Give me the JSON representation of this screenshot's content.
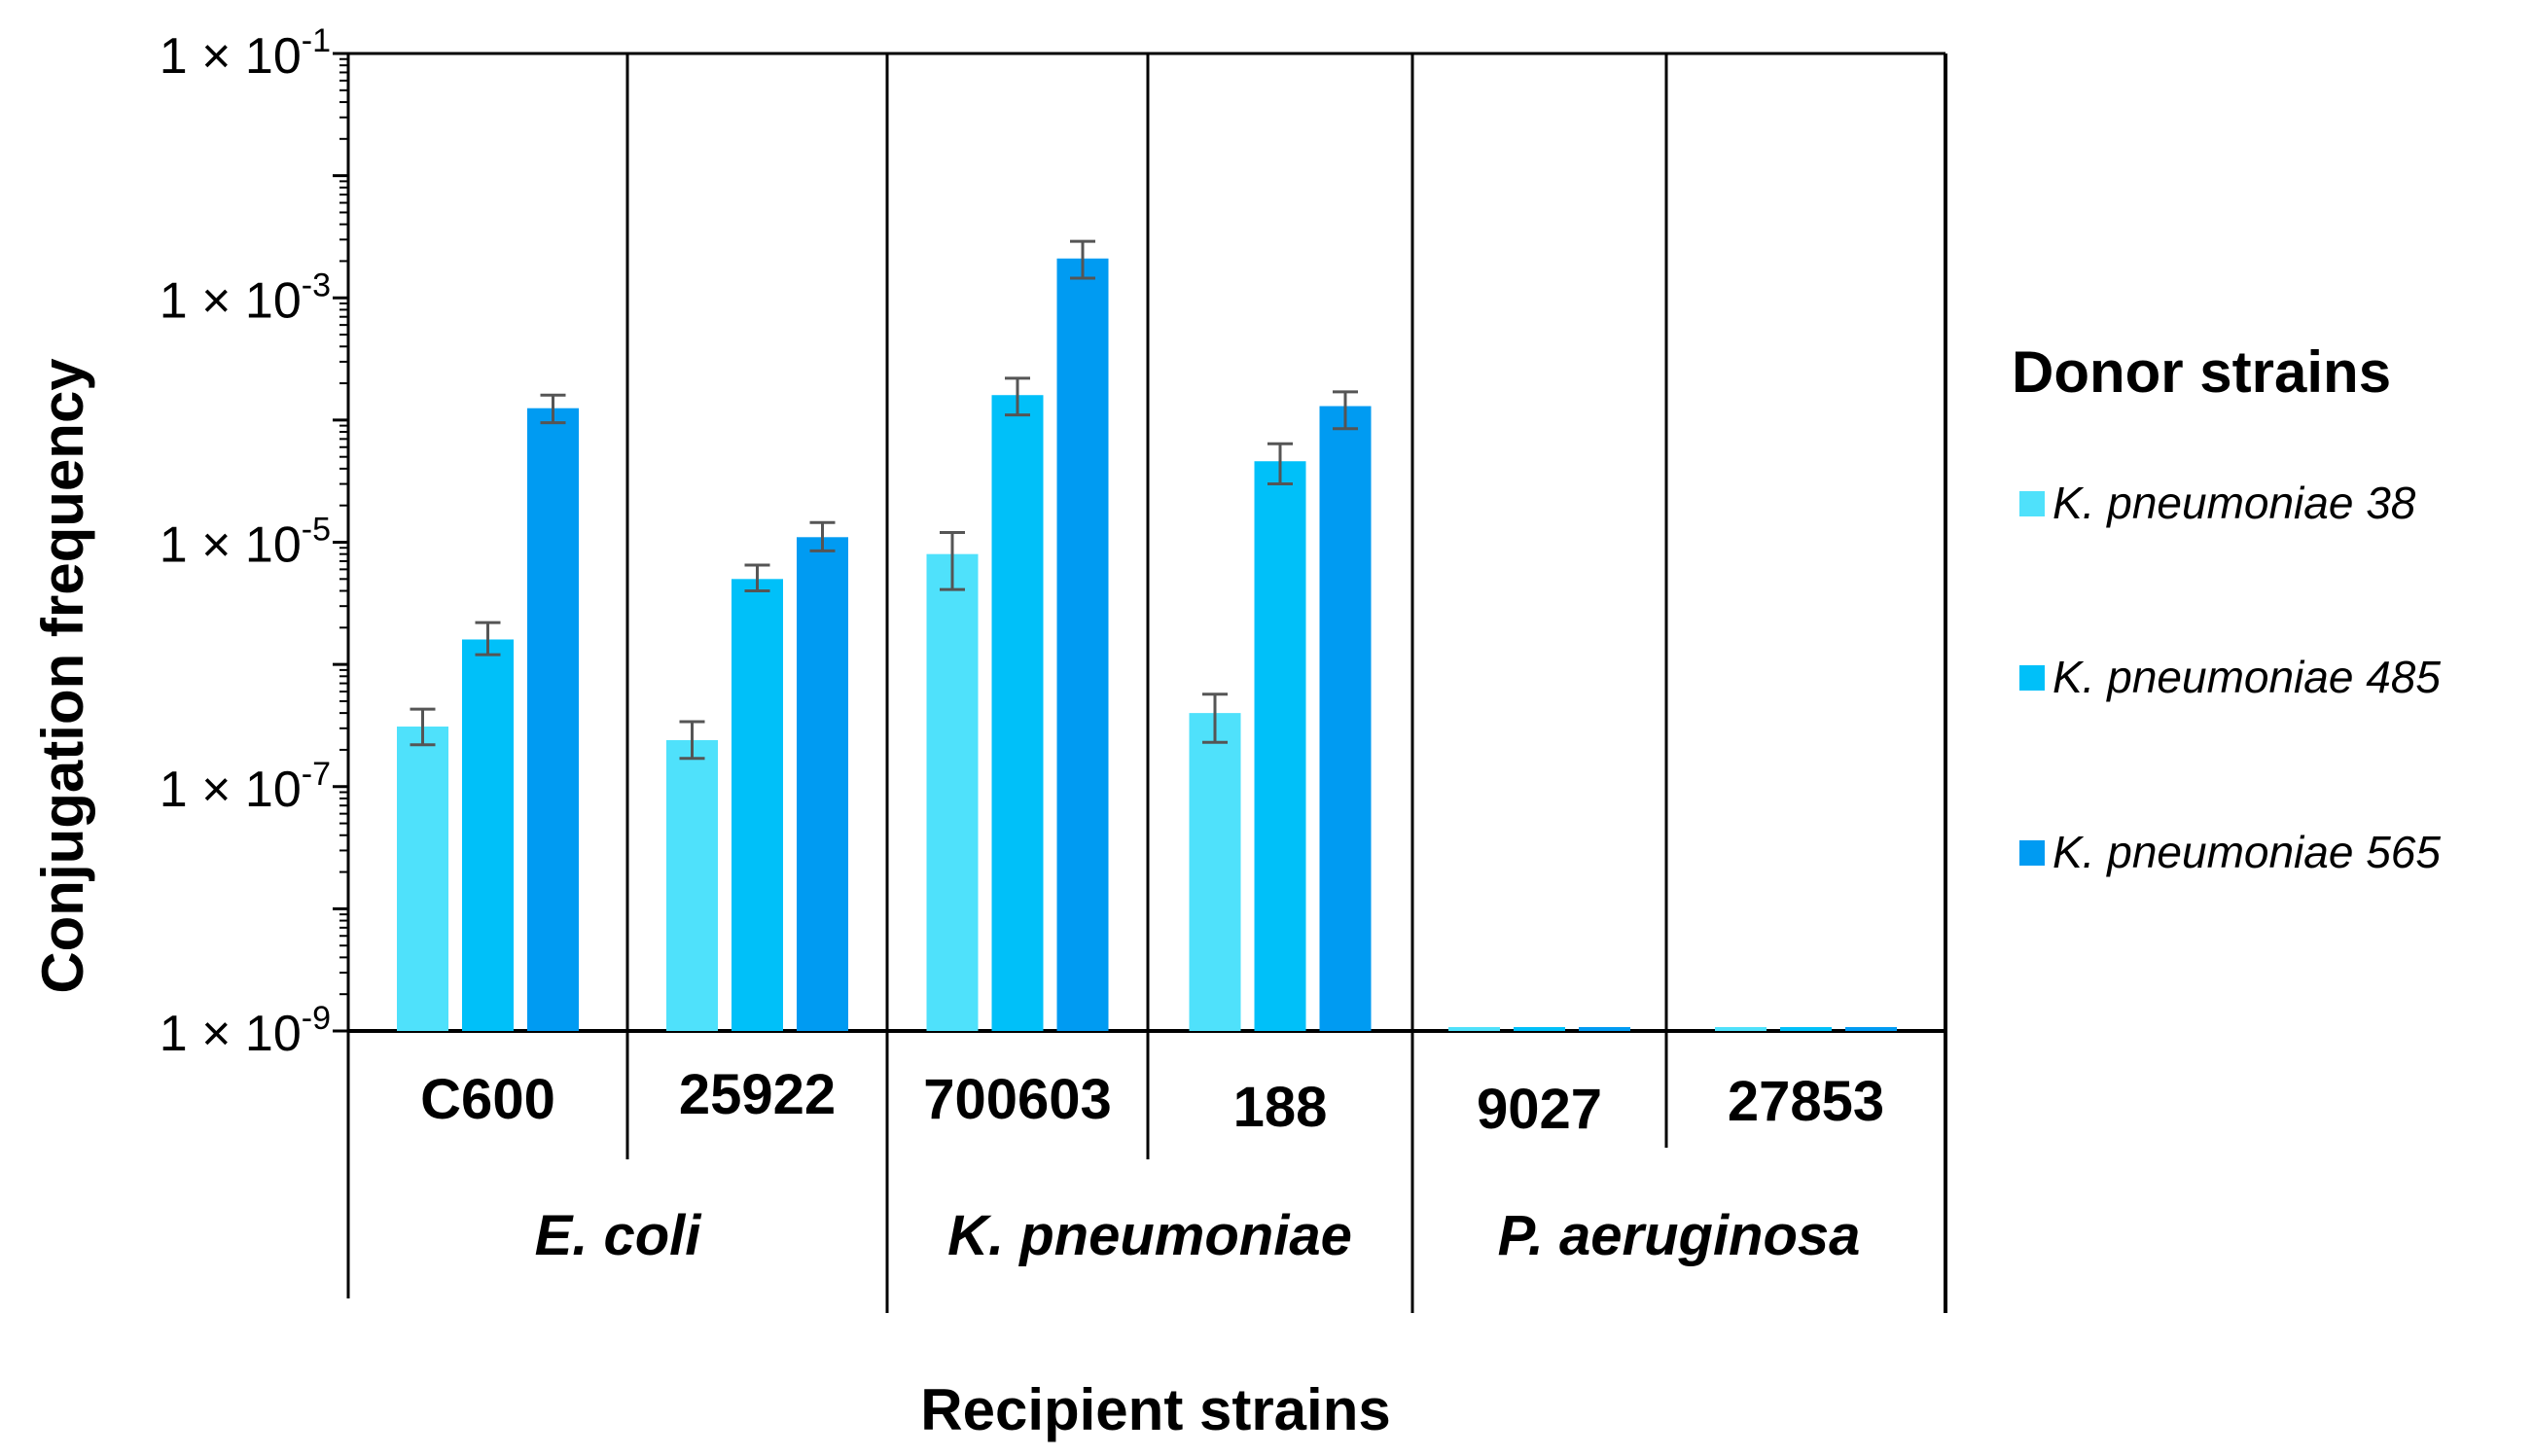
{
  "chart_data": {
    "type": "bar",
    "ylabel": "Conjugation frequency",
    "xlabel": "Recipient strains",
    "yscale": "log",
    "ylim": [
      1e-09,
      0.1
    ],
    "y_ticks": [
      {
        "base": "1 × 10",
        "exp": "-1",
        "value": 0.1
      },
      {
        "base": "1 × 10",
        "exp": "-3",
        "value": 0.001
      },
      {
        "base": "1 × 10",
        "exp": "-5",
        "value": 1e-05
      },
      {
        "base": "1 × 10",
        "exp": "-7",
        "value": 1e-07
      },
      {
        "base": "1 × 10",
        "exp": "-9",
        "value": 1e-09
      }
    ],
    "categories": [
      "C600",
      "25922",
      "700603",
      "188",
      "9027",
      "27853"
    ],
    "groups": [
      {
        "label": "E. coli",
        "categories": [
          "C600",
          "25922"
        ]
      },
      {
        "label": "K. pneumoniae",
        "categories": [
          "700603",
          "188"
        ]
      },
      {
        "label": "P. aeruginosa",
        "categories": [
          "9027",
          "27853"
        ]
      }
    ],
    "legend": {
      "title": "Donor strains",
      "position": "right"
    },
    "grid": false,
    "series": [
      {
        "name": "K. pneumoniae 38",
        "color": "#4fe1fb",
        "values": [
          3.1e-07,
          2.4e-07,
          8e-06,
          4e-07,
          1e-09,
          1e-09
        ],
        "err_low": [
          2.2e-07,
          1.7e-07,
          4.1e-06,
          2.3e-07,
          null,
          null
        ],
        "err_high": [
          4.3e-07,
          3.4e-07,
          1.2e-05,
          5.7e-07,
          null,
          null
        ]
      },
      {
        "name": "K. pneumoniae 485",
        "color": "#00c0f9",
        "values": [
          1.6e-06,
          5e-06,
          0.00016,
          4.6e-05,
          1e-09,
          1e-09
        ],
        "err_low": [
          1.2e-06,
          4e-06,
          0.00011,
          3e-05,
          null,
          null
        ],
        "err_high": [
          2.2e-06,
          6.5e-06,
          0.00022,
          6.4e-05,
          null,
          null
        ]
      },
      {
        "name": "K. pneumoniae 565",
        "color": "#009bf2",
        "values": [
          0.000125,
          1.1e-05,
          0.0021,
          0.00013,
          1e-09,
          1e-09
        ],
        "err_low": [
          9.5e-05,
          8.5e-06,
          0.00145,
          8.5e-05,
          null,
          null
        ],
        "err_high": [
          0.00016,
          1.45e-05,
          0.0029,
          0.00017,
          null,
          null
        ]
      }
    ]
  }
}
